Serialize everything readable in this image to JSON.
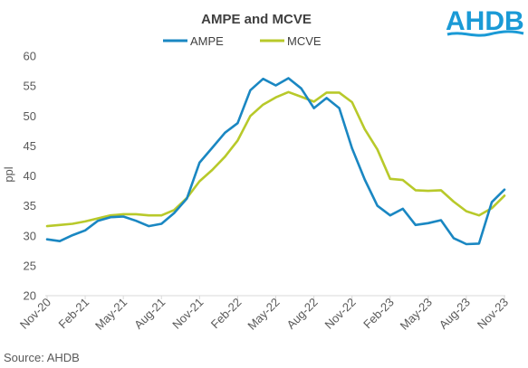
{
  "logo": {
    "text": "AHDB"
  },
  "source": "Source: AHDB",
  "chart_data": {
    "type": "line",
    "title": "AMPE and MCVE",
    "xlabel": "",
    "ylabel": "ppl",
    "ylim": [
      20,
      60
    ],
    "yticks": [
      20,
      25,
      30,
      35,
      40,
      45,
      50,
      55,
      60
    ],
    "grid": false,
    "legend_position": "top",
    "x": [
      "Nov-20",
      "Dec-20",
      "Jan-21",
      "Feb-21",
      "Mar-21",
      "Apr-21",
      "May-21",
      "Jun-21",
      "Jul-21",
      "Aug-21",
      "Sep-21",
      "Oct-21",
      "Nov-21",
      "Dec-21",
      "Jan-22",
      "Feb-22",
      "Mar-22",
      "Apr-22",
      "May-22",
      "Jun-22",
      "Jul-22",
      "Aug-22",
      "Sep-22",
      "Oct-22",
      "Nov-22",
      "Dec-22",
      "Jan-23",
      "Feb-23",
      "Mar-23",
      "Apr-23",
      "May-23",
      "Jun-23",
      "Jul-23",
      "Aug-23",
      "Sep-23",
      "Oct-23",
      "Nov-23"
    ],
    "x_tick_labels": [
      "Nov-20",
      "Feb-21",
      "May-21",
      "Aug-21",
      "Nov-21",
      "Feb-22",
      "May-22",
      "Aug-22",
      "Nov-22",
      "Feb-23",
      "May-23",
      "Aug-23",
      "Nov-23"
    ],
    "series": [
      {
        "name": "AMPE",
        "color": "#1a87c2",
        "values": [
          29.4,
          29.1,
          30.1,
          30.9,
          32.5,
          33.1,
          33.2,
          32.5,
          31.6,
          32.0,
          33.8,
          36.2,
          42.2,
          44.7,
          47.2,
          48.8,
          54.3,
          56.2,
          55.1,
          56.3,
          54.6,
          51.3,
          53.0,
          51.3,
          44.6,
          39.4,
          35.0,
          33.4,
          34.5,
          31.8,
          32.1,
          32.6,
          29.6,
          28.6,
          28.7,
          35.6,
          37.7
        ]
      },
      {
        "name": "MCVE",
        "color": "#b8c92a",
        "values": [
          31.6,
          31.8,
          32.0,
          32.4,
          32.9,
          33.4,
          33.6,
          33.6,
          33.4,
          33.4,
          34.3,
          36.3,
          39.1,
          41.0,
          43.2,
          45.9,
          50.0,
          51.9,
          53.1,
          54.0,
          53.2,
          52.4,
          53.9,
          53.9,
          52.3,
          47.8,
          44.4,
          39.5,
          39.3,
          37.6,
          37.5,
          37.6,
          35.7,
          34.1,
          33.4,
          34.6,
          36.7
        ]
      }
    ]
  }
}
